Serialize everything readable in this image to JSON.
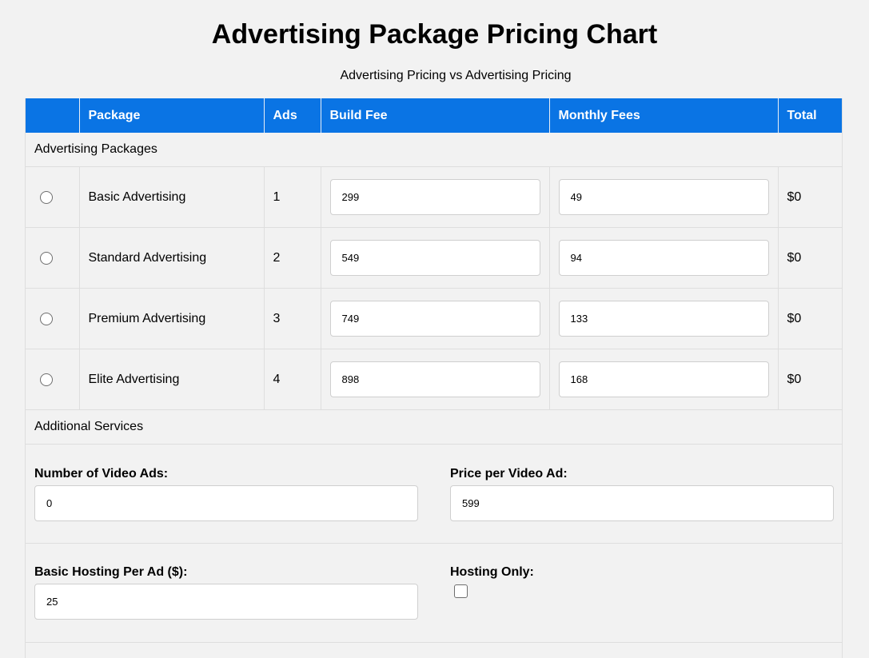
{
  "title": "Advertising Package Pricing Chart",
  "subtitle": "Advertising Pricing vs Advertising Pricing",
  "table": {
    "headers": [
      "",
      "Package",
      "Ads",
      "Build Fee",
      "Monthly Fees",
      "Total"
    ],
    "section_packages": "Advertising Packages",
    "rows": [
      {
        "package": "Basic Advertising",
        "ads": "1",
        "build_fee": "299",
        "monthly_fee": "49",
        "total": "$0"
      },
      {
        "package": "Standard Advertising",
        "ads": "2",
        "build_fee": "549",
        "monthly_fee": "94",
        "total": "$0"
      },
      {
        "package": "Premium Advertising",
        "ads": "3",
        "build_fee": "749",
        "monthly_fee": "133",
        "total": "$0"
      },
      {
        "package": "Elite Advertising",
        "ads": "4",
        "build_fee": "898",
        "monthly_fee": "168",
        "total": "$0"
      }
    ],
    "section_additional": "Additional Services"
  },
  "services": {
    "video_ads_label": "Number of Video Ads:",
    "video_ads_value": "0",
    "price_per_video_label": "Price per Video Ad:",
    "price_per_video_value": "599",
    "hosting_label": "Basic Hosting Per Ad ($):",
    "hosting_value": "25",
    "hosting_only_label": "Hosting Only:",
    "hosting_only_checked": false
  },
  "colors": {
    "header_bg": "#0a74e4",
    "page_bg": "#f2f2f2"
  }
}
